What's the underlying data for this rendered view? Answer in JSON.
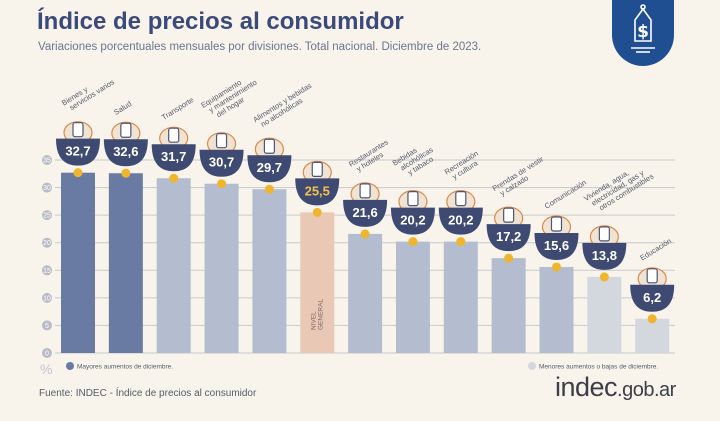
{
  "header": {
    "title": "Índice de precios al consumidor",
    "subtitle": "Variaciones porcentuales mensuales por divisiones. Total nacional. Diciembre de 2023."
  },
  "logo_icon": "price-tag-dollar-icon",
  "footer": {
    "source": "Fuente: INDEC - Índice de precios al consumidor",
    "brand_main": "indec",
    "brand_domain": ".gob.ar"
  },
  "colors": {
    "highest": "#6a7ba3",
    "middle": "#b4bdd0",
    "lowest": "#d3d7de",
    "general": "#e9c8b6",
    "badge": "#3f4a72",
    "badge_general": "#3f4a72",
    "badge_general_text": "#f3c24a",
    "dot": "#f0b52c",
    "title": "#3b4a7a"
  },
  "chart_data": {
    "type": "bar",
    "ylabel": "%",
    "ylim": [
      0,
      35
    ],
    "yticks": [
      0,
      5,
      10,
      15,
      20,
      25,
      30,
      35
    ],
    "grid": true,
    "categories": [
      "Bienes y servicios varios",
      "Salud",
      "Transporte",
      "Equipamiento y mantenimiento del hogar",
      "Alimentos y bebidas no alcohólicas",
      "NIVEL GENERAL",
      "Restaurantes y hoteles",
      "Bebidas alcohólicas y tabaco",
      "Recreación y cultura",
      "Prendas de vestir y calzado",
      "Comunicación",
      "Vivienda, agua, electricidad, gas y otros combustibles",
      "Educación"
    ],
    "label_lines": [
      [
        "Bienes y",
        "servicios varios"
      ],
      [
        "Salud"
      ],
      [
        "Transporte"
      ],
      [
        "Equipamiento",
        "y mantenimiento",
        "del hogar"
      ],
      [
        "Alimentos y bebidas",
        "no alcohólicas"
      ],
      [],
      [
        "Restaurantes",
        "y hoteles"
      ],
      [
        "Bebidas",
        "alcohólicas",
        "y tabaco"
      ],
      [
        "Recreación",
        "y cultura"
      ],
      [
        "Prendas de vestir",
        "y calzado"
      ],
      [
        "Comunicación"
      ],
      [
        "Vivienda, agua,",
        "electricidad, gas y",
        "otros combustibles"
      ],
      [
        "Educación"
      ]
    ],
    "general_bar_label": [
      "NIVEL",
      "GENERAL"
    ],
    "values": [
      32.7,
      32.6,
      31.7,
      30.7,
      29.7,
      25.5,
      21.6,
      20.2,
      20.2,
      17.2,
      15.6,
      13.8,
      6.2
    ],
    "value_labels": [
      "32,7",
      "32,6",
      "31,7",
      "30,7",
      "29,7",
      "25,5",
      "21,6",
      "20,2",
      "20,2",
      "17,2",
      "15,6",
      "13,8",
      "6,2"
    ],
    "groups": [
      "highest",
      "highest",
      "middle",
      "middle",
      "middle",
      "general",
      "middle",
      "middle",
      "middle",
      "middle",
      "middle",
      "lowest",
      "lowest"
    ],
    "icons": [
      "vacuum-icon",
      "first-aid-icon",
      "bus-car-icon",
      "washing-machine-icon",
      "food-icon",
      "shopping-cart-icon",
      "plate-cutlery-icon",
      "bottle-glass-icon",
      "sun-umbrella-icon",
      "clothes-shoe-icon",
      "phone-icon",
      "faucet-bulb-icon",
      "notebook-icon"
    ],
    "legend": [
      {
        "label": "Mayores aumentos de diciembre.",
        "group": "highest",
        "placement": "bottom-left"
      },
      {
        "label": "Menores aumentos o bajas de diciembre.",
        "group": "lowest",
        "placement": "bottom-right"
      }
    ]
  }
}
